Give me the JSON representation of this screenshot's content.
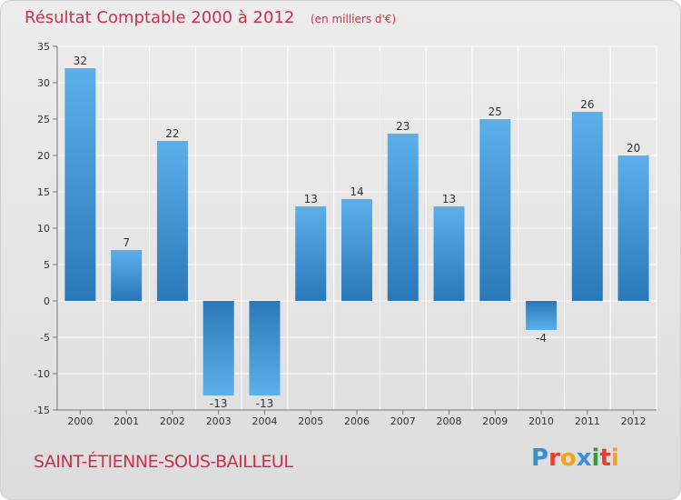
{
  "chart_data": {
    "type": "bar",
    "title": "Résultat Comptable 2000 à 2012",
    "subtitle": "(en milliers d'€)",
    "categories": [
      "2000",
      "2001",
      "2002",
      "2003",
      "2004",
      "2005",
      "2006",
      "2007",
      "2008",
      "2009",
      "2010",
      "2011",
      "2012"
    ],
    "values": [
      32,
      7,
      22,
      -13,
      -13,
      13,
      14,
      23,
      13,
      25,
      -4,
      26,
      20
    ],
    "data_labels": [
      "32",
      "7",
      "22",
      "-13",
      "-13",
      "13",
      "14",
      "23",
      "13",
      "25",
      "-4",
      "26",
      "20"
    ],
    "xlabel": "",
    "ylabel": "",
    "ylim": [
      -15,
      35
    ],
    "yticks": [
      -15,
      -10,
      -5,
      0,
      5,
      10,
      15,
      20,
      25,
      30,
      35
    ],
    "grid": true,
    "bar_color": "#3a8fd0"
  },
  "footer": {
    "commune": "SAINT-ÉTIENNE-SOUS-BAILLEUL",
    "logo": "Proxiti"
  },
  "colors": {
    "title": "#c8324e",
    "logo_letters": [
      "#3a8fd0",
      "#e8402a",
      "#f4a21c",
      "#3a8fd0",
      "#2e9d3a",
      "#e8402a",
      "#f4a21c"
    ]
  }
}
